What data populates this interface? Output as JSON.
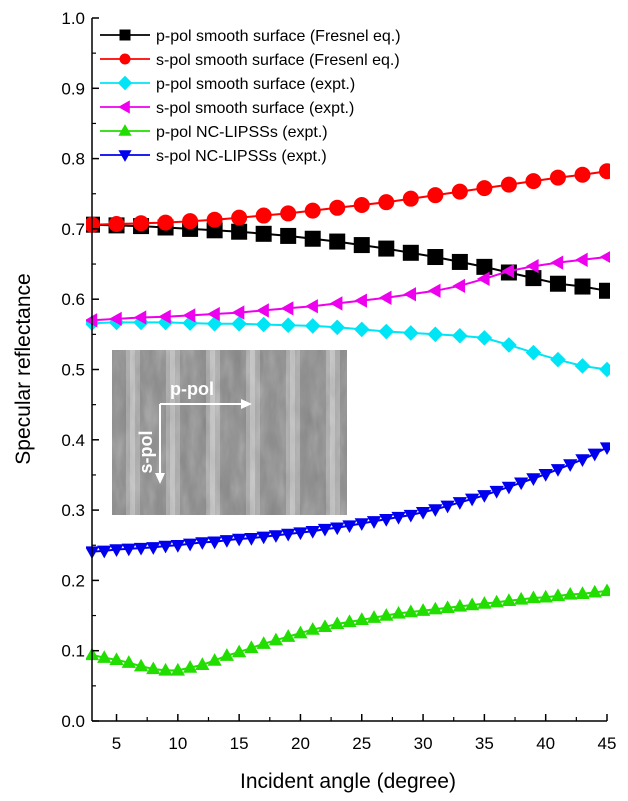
{
  "chart_data": {
    "type": "scatter",
    "xlabel": "Incident angle (degree)",
    "ylabel": "Specular reflectance",
    "xlim": [
      3,
      45
    ],
    "ylim": [
      0.0,
      1.0
    ],
    "xticks": [
      5,
      10,
      15,
      20,
      25,
      30,
      35,
      40,
      45
    ],
    "yticks": [
      "0.0",
      "0.1",
      "0.2",
      "0.3",
      "0.4",
      "0.5",
      "0.6",
      "0.7",
      "0.8",
      "0.9",
      "1.0"
    ],
    "legend_position": "top-left",
    "grid": false,
    "series": [
      {
        "name": "p-pol smooth surface (Fresnel eq.)",
        "color": "#000000",
        "marker": "square",
        "x": [
          3,
          5,
          7,
          9,
          11,
          13,
          15,
          17,
          19,
          21,
          23,
          25,
          27,
          29,
          31,
          33,
          35,
          37,
          39,
          41,
          43,
          45
        ],
        "y": [
          0.706,
          0.705,
          0.704,
          0.702,
          0.7,
          0.698,
          0.696,
          0.693,
          0.69,
          0.686,
          0.682,
          0.677,
          0.672,
          0.666,
          0.66,
          0.653,
          0.646,
          0.638,
          0.63,
          0.622,
          0.618,
          0.612
        ]
      },
      {
        "name": "s-pol smooth surface (Fresenl eq.)",
        "color": "#ff0000",
        "marker": "circle",
        "x": [
          3,
          5,
          7,
          9,
          11,
          13,
          15,
          17,
          19,
          21,
          23,
          25,
          27,
          29,
          31,
          33,
          35,
          37,
          39,
          41,
          43,
          45
        ],
        "y": [
          0.706,
          0.707,
          0.708,
          0.709,
          0.711,
          0.713,
          0.716,
          0.719,
          0.722,
          0.726,
          0.73,
          0.734,
          0.738,
          0.743,
          0.748,
          0.753,
          0.758,
          0.763,
          0.768,
          0.773,
          0.777,
          0.782
        ]
      },
      {
        "name": "p-pol smooth surface (expt.)",
        "color": "#00e5f5",
        "marker": "diamond",
        "x": [
          3,
          5,
          7,
          9,
          11,
          13,
          15,
          17,
          19,
          21,
          23,
          25,
          27,
          29,
          31,
          33,
          35,
          37,
          39,
          41,
          43,
          45
        ],
        "y": [
          0.566,
          0.567,
          0.567,
          0.567,
          0.566,
          0.565,
          0.565,
          0.564,
          0.563,
          0.562,
          0.56,
          0.557,
          0.554,
          0.552,
          0.55,
          0.548,
          0.545,
          0.535,
          0.524,
          0.514,
          0.505,
          0.5
        ]
      },
      {
        "name": "s-pol smooth surface (expt.)",
        "color": "#ee00ee",
        "marker": "triangle-left",
        "x": [
          3,
          5,
          7,
          9,
          11,
          13,
          15,
          17,
          19,
          21,
          23,
          25,
          27,
          29,
          31,
          33,
          35,
          37,
          39,
          41,
          43,
          45
        ],
        "y": [
          0.57,
          0.572,
          0.574,
          0.575,
          0.577,
          0.579,
          0.581,
          0.584,
          0.587,
          0.59,
          0.594,
          0.598,
          0.602,
          0.607,
          0.612,
          0.619,
          0.629,
          0.64,
          0.647,
          0.652,
          0.656,
          0.66
        ]
      },
      {
        "name": "p-pol NC-LIPSSs (expt.)",
        "color": "#22dd00",
        "marker": "triangle-up",
        "x": [
          3,
          4,
          5,
          6,
          7,
          8,
          9,
          10,
          11,
          12,
          13,
          14,
          15,
          16,
          17,
          18,
          19,
          20,
          21,
          22,
          23,
          24,
          25,
          26,
          27,
          28,
          29,
          30,
          31,
          32,
          33,
          34,
          35,
          36,
          37,
          38,
          39,
          40,
          41,
          42,
          43,
          44,
          45
        ],
        "y": [
          0.094,
          0.09,
          0.087,
          0.083,
          0.078,
          0.074,
          0.072,
          0.072,
          0.076,
          0.08,
          0.086,
          0.093,
          0.098,
          0.104,
          0.11,
          0.115,
          0.12,
          0.125,
          0.13,
          0.134,
          0.138,
          0.141,
          0.144,
          0.147,
          0.15,
          0.153,
          0.155,
          0.157,
          0.159,
          0.161,
          0.163,
          0.165,
          0.167,
          0.169,
          0.171,
          0.173,
          0.175,
          0.176,
          0.178,
          0.18,
          0.181,
          0.183,
          0.185
        ]
      },
      {
        "name": "s-pol NC-LIPSSs (expt.)",
        "color": "#0000ee",
        "marker": "triangle-down",
        "x": [
          3,
          4,
          5,
          6,
          7,
          8,
          9,
          10,
          11,
          12,
          13,
          14,
          15,
          16,
          17,
          18,
          19,
          20,
          21,
          22,
          23,
          24,
          25,
          26,
          27,
          28,
          29,
          30,
          31,
          32,
          33,
          34,
          35,
          36,
          37,
          38,
          39,
          40,
          41,
          42,
          43,
          44,
          45
        ],
        "y": [
          0.241,
          0.242,
          0.244,
          0.245,
          0.246,
          0.247,
          0.249,
          0.25,
          0.252,
          0.254,
          0.255,
          0.257,
          0.259,
          0.26,
          0.262,
          0.264,
          0.266,
          0.268,
          0.27,
          0.273,
          0.275,
          0.278,
          0.281,
          0.284,
          0.287,
          0.29,
          0.293,
          0.297,
          0.301,
          0.306,
          0.311,
          0.316,
          0.321,
          0.327,
          0.333,
          0.339,
          0.345,
          0.351,
          0.358,
          0.365,
          0.372,
          0.38,
          0.389
        ]
      }
    ]
  },
  "inset": {
    "label_horizontal": "p-pol",
    "label_vertical": "s-pol"
  }
}
